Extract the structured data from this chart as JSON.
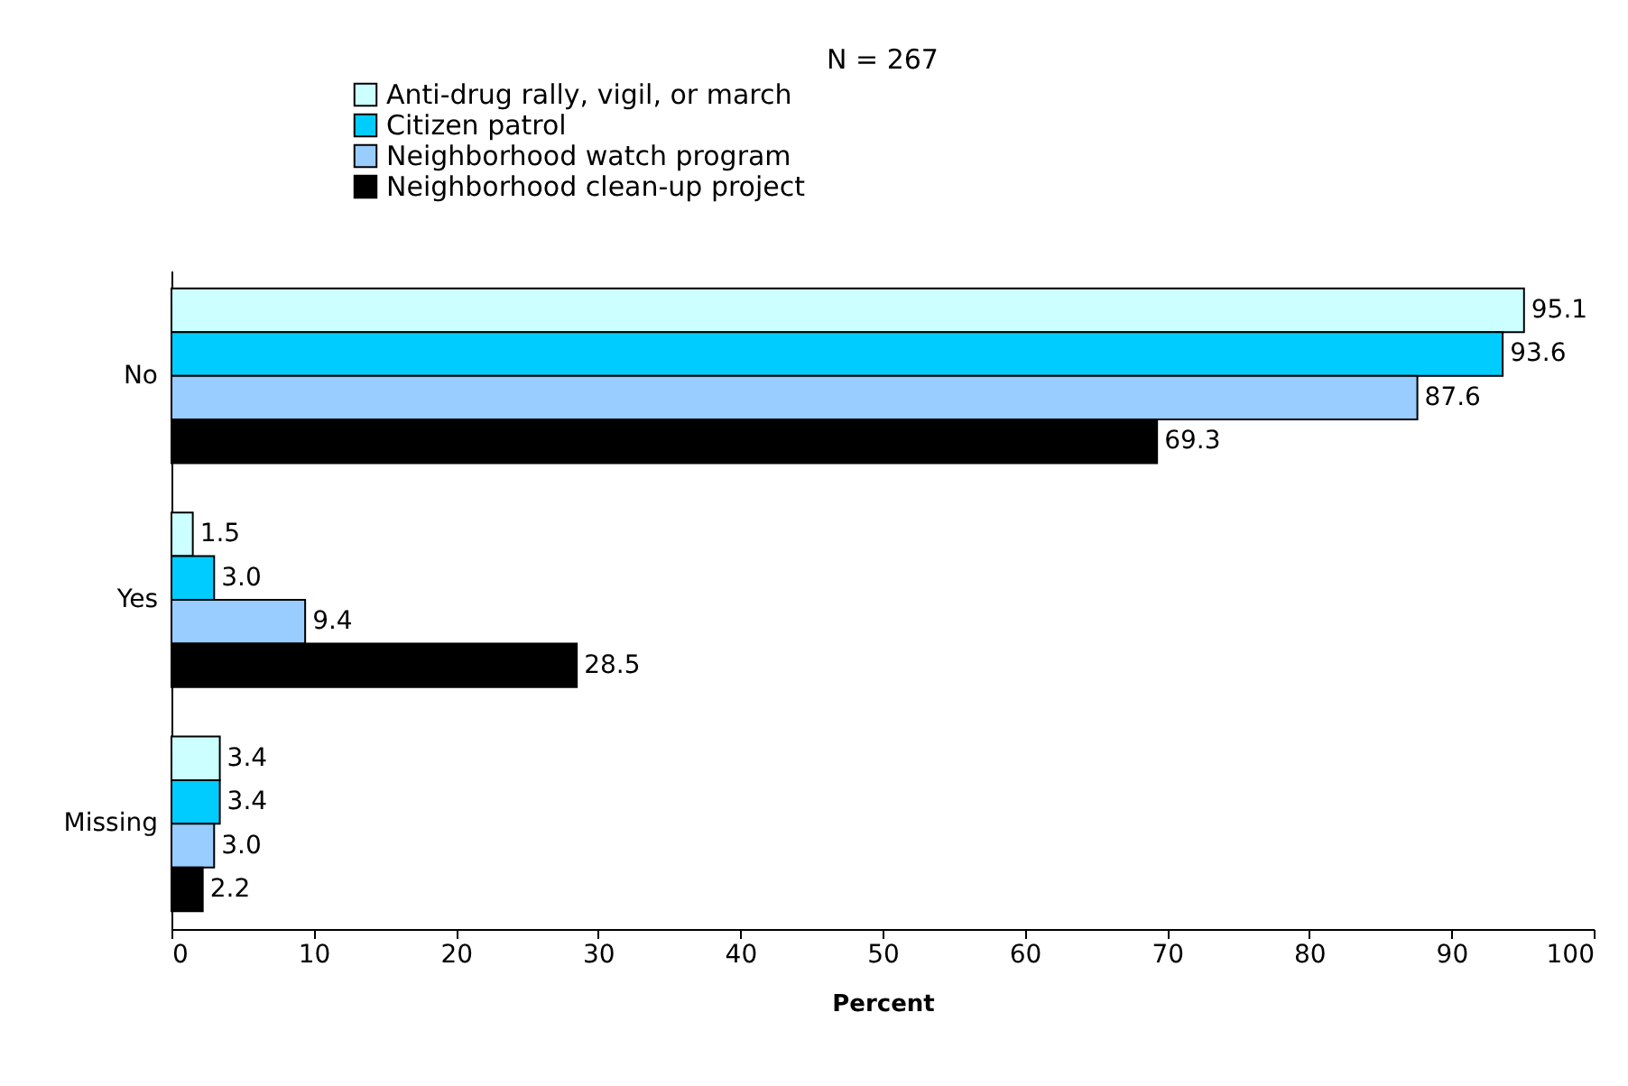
{
  "chart_data": {
    "type": "bar",
    "orientation": "horizontal",
    "title": "N = 267",
    "categories": [
      "No",
      "Yes",
      "Missing"
    ],
    "series": [
      {
        "name": "Anti-drug rally, vigil, or march",
        "color": "#ccffff",
        "values": [
          95.1,
          1.5,
          3.4
        ],
        "value_labels": [
          "95.1",
          "1.5",
          "3.4"
        ]
      },
      {
        "name": "Citizen patrol",
        "color": "#00ccff",
        "values": [
          93.6,
          3.0,
          3.4
        ],
        "value_labels": [
          "93.6",
          "3.0",
          "3.4"
        ]
      },
      {
        "name": "Neighborhood watch program",
        "color": "#99ccff",
        "values": [
          87.6,
          9.4,
          3.0
        ],
        "value_labels": [
          "87.6",
          "9.4",
          "3.0"
        ]
      },
      {
        "name": "Neighborhood clean-up project",
        "color": "#000000",
        "values": [
          69.3,
          28.5,
          2.2
        ],
        "value_labels": [
          "69.3",
          "28.5",
          "2.2"
        ]
      }
    ],
    "xlim": [
      0,
      100
    ],
    "xticks": [
      0,
      10,
      20,
      30,
      40,
      50,
      60,
      70,
      80,
      90,
      100
    ],
    "xlabel": "Percent",
    "legend": "top",
    "grid": false
  }
}
